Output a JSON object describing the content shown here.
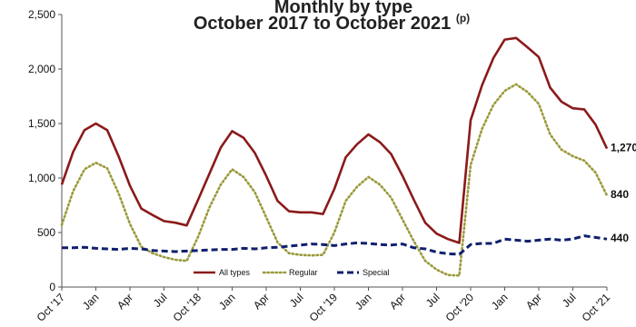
{
  "chart_data": {
    "type": "line",
    "title_line1": "Monthly by type",
    "title_line2": "October 2017 to October 2021",
    "title_superscript": "(p)",
    "xlabel": "",
    "ylabel": "",
    "ylim": [
      0,
      2500
    ],
    "yticks": [
      0,
      500,
      1000,
      1500,
      2000,
      2500
    ],
    "ytick_labels": [
      "0",
      "500",
      "1,000",
      "1,500",
      "2,000",
      "2,500"
    ],
    "xtick_labels": [
      "Oct '17",
      "Jan",
      "Apr",
      "Jul",
      "Oct '18",
      "Jan",
      "Apr",
      "Jul",
      "Oct '19",
      "Jan",
      "Apr",
      "Jul",
      "Oct '20",
      "Jan",
      "Apr",
      "Jul",
      "Oct '21"
    ],
    "legend": "bottom-inside",
    "grid": false,
    "series": [
      {
        "name": "All types",
        "color": "#8b1a1a",
        "style": "solid",
        "end_label": "1,270",
        "values": [
          940,
          1240,
          1440,
          1500,
          1440,
          1200,
          930,
          720,
          660,
          605,
          590,
          565,
          800,
          1040,
          1280,
          1430,
          1370,
          1230,
          1020,
          790,
          695,
          685,
          685,
          670,
          900,
          1190,
          1310,
          1400,
          1330,
          1220,
          1020,
          800,
          590,
          490,
          440,
          405,
          1530,
          1850,
          2100,
          2270,
          2285,
          2200,
          2110,
          1830,
          1700,
          1640,
          1630,
          1490,
          1270
        ]
      },
      {
        "name": "Regular",
        "color": "#9a9a3c",
        "style": "dotted",
        "end_label": "840",
        "values": [
          570,
          880,
          1080,
          1140,
          1090,
          860,
          580,
          370,
          310,
          275,
          250,
          240,
          460,
          730,
          940,
          1080,
          1010,
          870,
          640,
          410,
          310,
          295,
          290,
          295,
          500,
          790,
          920,
          1010,
          940,
          820,
          620,
          420,
          240,
          160,
          110,
          105,
          1120,
          1450,
          1670,
          1800,
          1860,
          1790,
          1680,
          1400,
          1260,
          1200,
          1160,
          1050,
          840
        ]
      },
      {
        "name": "Special",
        "color": "#10206e",
        "style": "dashed",
        "end_label": "440",
        "values": [
          360,
          360,
          365,
          355,
          350,
          345,
          355,
          350,
          335,
          330,
          325,
          330,
          335,
          340,
          345,
          345,
          355,
          350,
          360,
          365,
          375,
          385,
          395,
          390,
          380,
          395,
          405,
          400,
          390,
          385,
          395,
          360,
          350,
          320,
          305,
          300,
          390,
          400,
          400,
          440,
          430,
          420,
          430,
          440,
          430,
          440,
          470,
          455,
          440
        ]
      }
    ]
  }
}
